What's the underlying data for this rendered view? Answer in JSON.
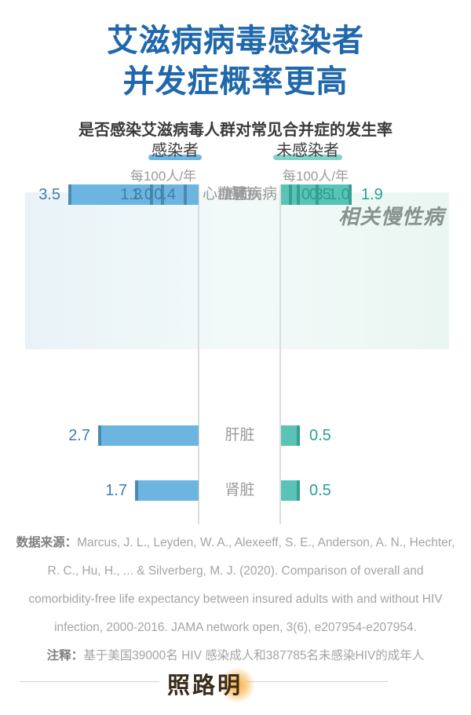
{
  "page": {
    "title_line1": "艾滋病病毒感染者",
    "title_line2": "并发症概率更高",
    "subtitle": "是否感染艾滋病毒人群对常见合并症的发生率"
  },
  "colors": {
    "title_blue": "#2068ab",
    "infected_bar": "#6db5e1",
    "infected_bar_cap": "#4a8cb0",
    "uninfected_bar": "#59c3b5",
    "uninfected_bar_cap": "#38a093",
    "infected_value_text": "#3f7fa6",
    "uninfected_value_text": "#2aa093",
    "legend_marker_blue": "#6fb7e3",
    "legend_marker_teal": "#82d4c4",
    "highlight_bg": "#edf6f5"
  },
  "legend": {
    "infected_label": "感染者",
    "uninfected_label": "未感染者",
    "unit_left": "每100人/年",
    "unit_right": "每100人/年"
  },
  "chart_data": {
    "type": "bar",
    "orientation": "diverging-horizontal",
    "title": "是否感染艾滋病毒人群对常见合并症的发生率",
    "unit": "每100人/年",
    "series": [
      {
        "name": "感染者",
        "values": [
          2.7,
          1.7,
          3.5,
          1.3,
          1.0,
          0.4
        ]
      },
      {
        "name": "未感染者",
        "values": [
          0.5,
          0.5,
          1.9,
          1.0,
          0.5,
          0.3
        ]
      }
    ],
    "categories": [
      "肝脏",
      "肾脏",
      "肺",
      "糖尿病",
      "癌症",
      "心血管疾病"
    ],
    "rows": [
      {
        "label": "肝脏",
        "infected": "2.7",
        "uninfected": "0.5"
      },
      {
        "label": "肾脏",
        "infected": "1.7",
        "uninfected": "0.5"
      },
      {
        "label": "肺",
        "infected": "3.5",
        "uninfected": "1.9"
      },
      {
        "label": "糖尿病",
        "infected": "1.3",
        "uninfected": "1.0"
      },
      {
        "label": "癌症",
        "infected": "1.0",
        "uninfected": "0.5"
      },
      {
        "label": "心血管疾病",
        "infected": "0.4",
        "uninfected": "0.3"
      }
    ],
    "annotation": "相关慢性病",
    "highlighted_categories": [
      "肝脏",
      "肾脏",
      "肺"
    ],
    "xlim_per_side": [
      0,
      4
    ],
    "grid": false,
    "legend_position": "top"
  },
  "source": {
    "label": "数据来源：",
    "text": "Marcus, J. L., Leyden, W. A., Alexeeff, S. E., Anderson, A. N., Hechter, R. C., Hu, H., ... & Silverberg, M. J. (2020). Comparison of overall and comorbidity-free life expectancy between insured adults with and without HIV infection, 2000-2016. JAMA network open, 3(6), e207954-e207954.",
    "note_label": "注释：",
    "note_text": "基于美国39000名 HIV 感染成人和387785名未感染HIV的成年人"
  },
  "footer": {
    "logo": "照路明"
  }
}
